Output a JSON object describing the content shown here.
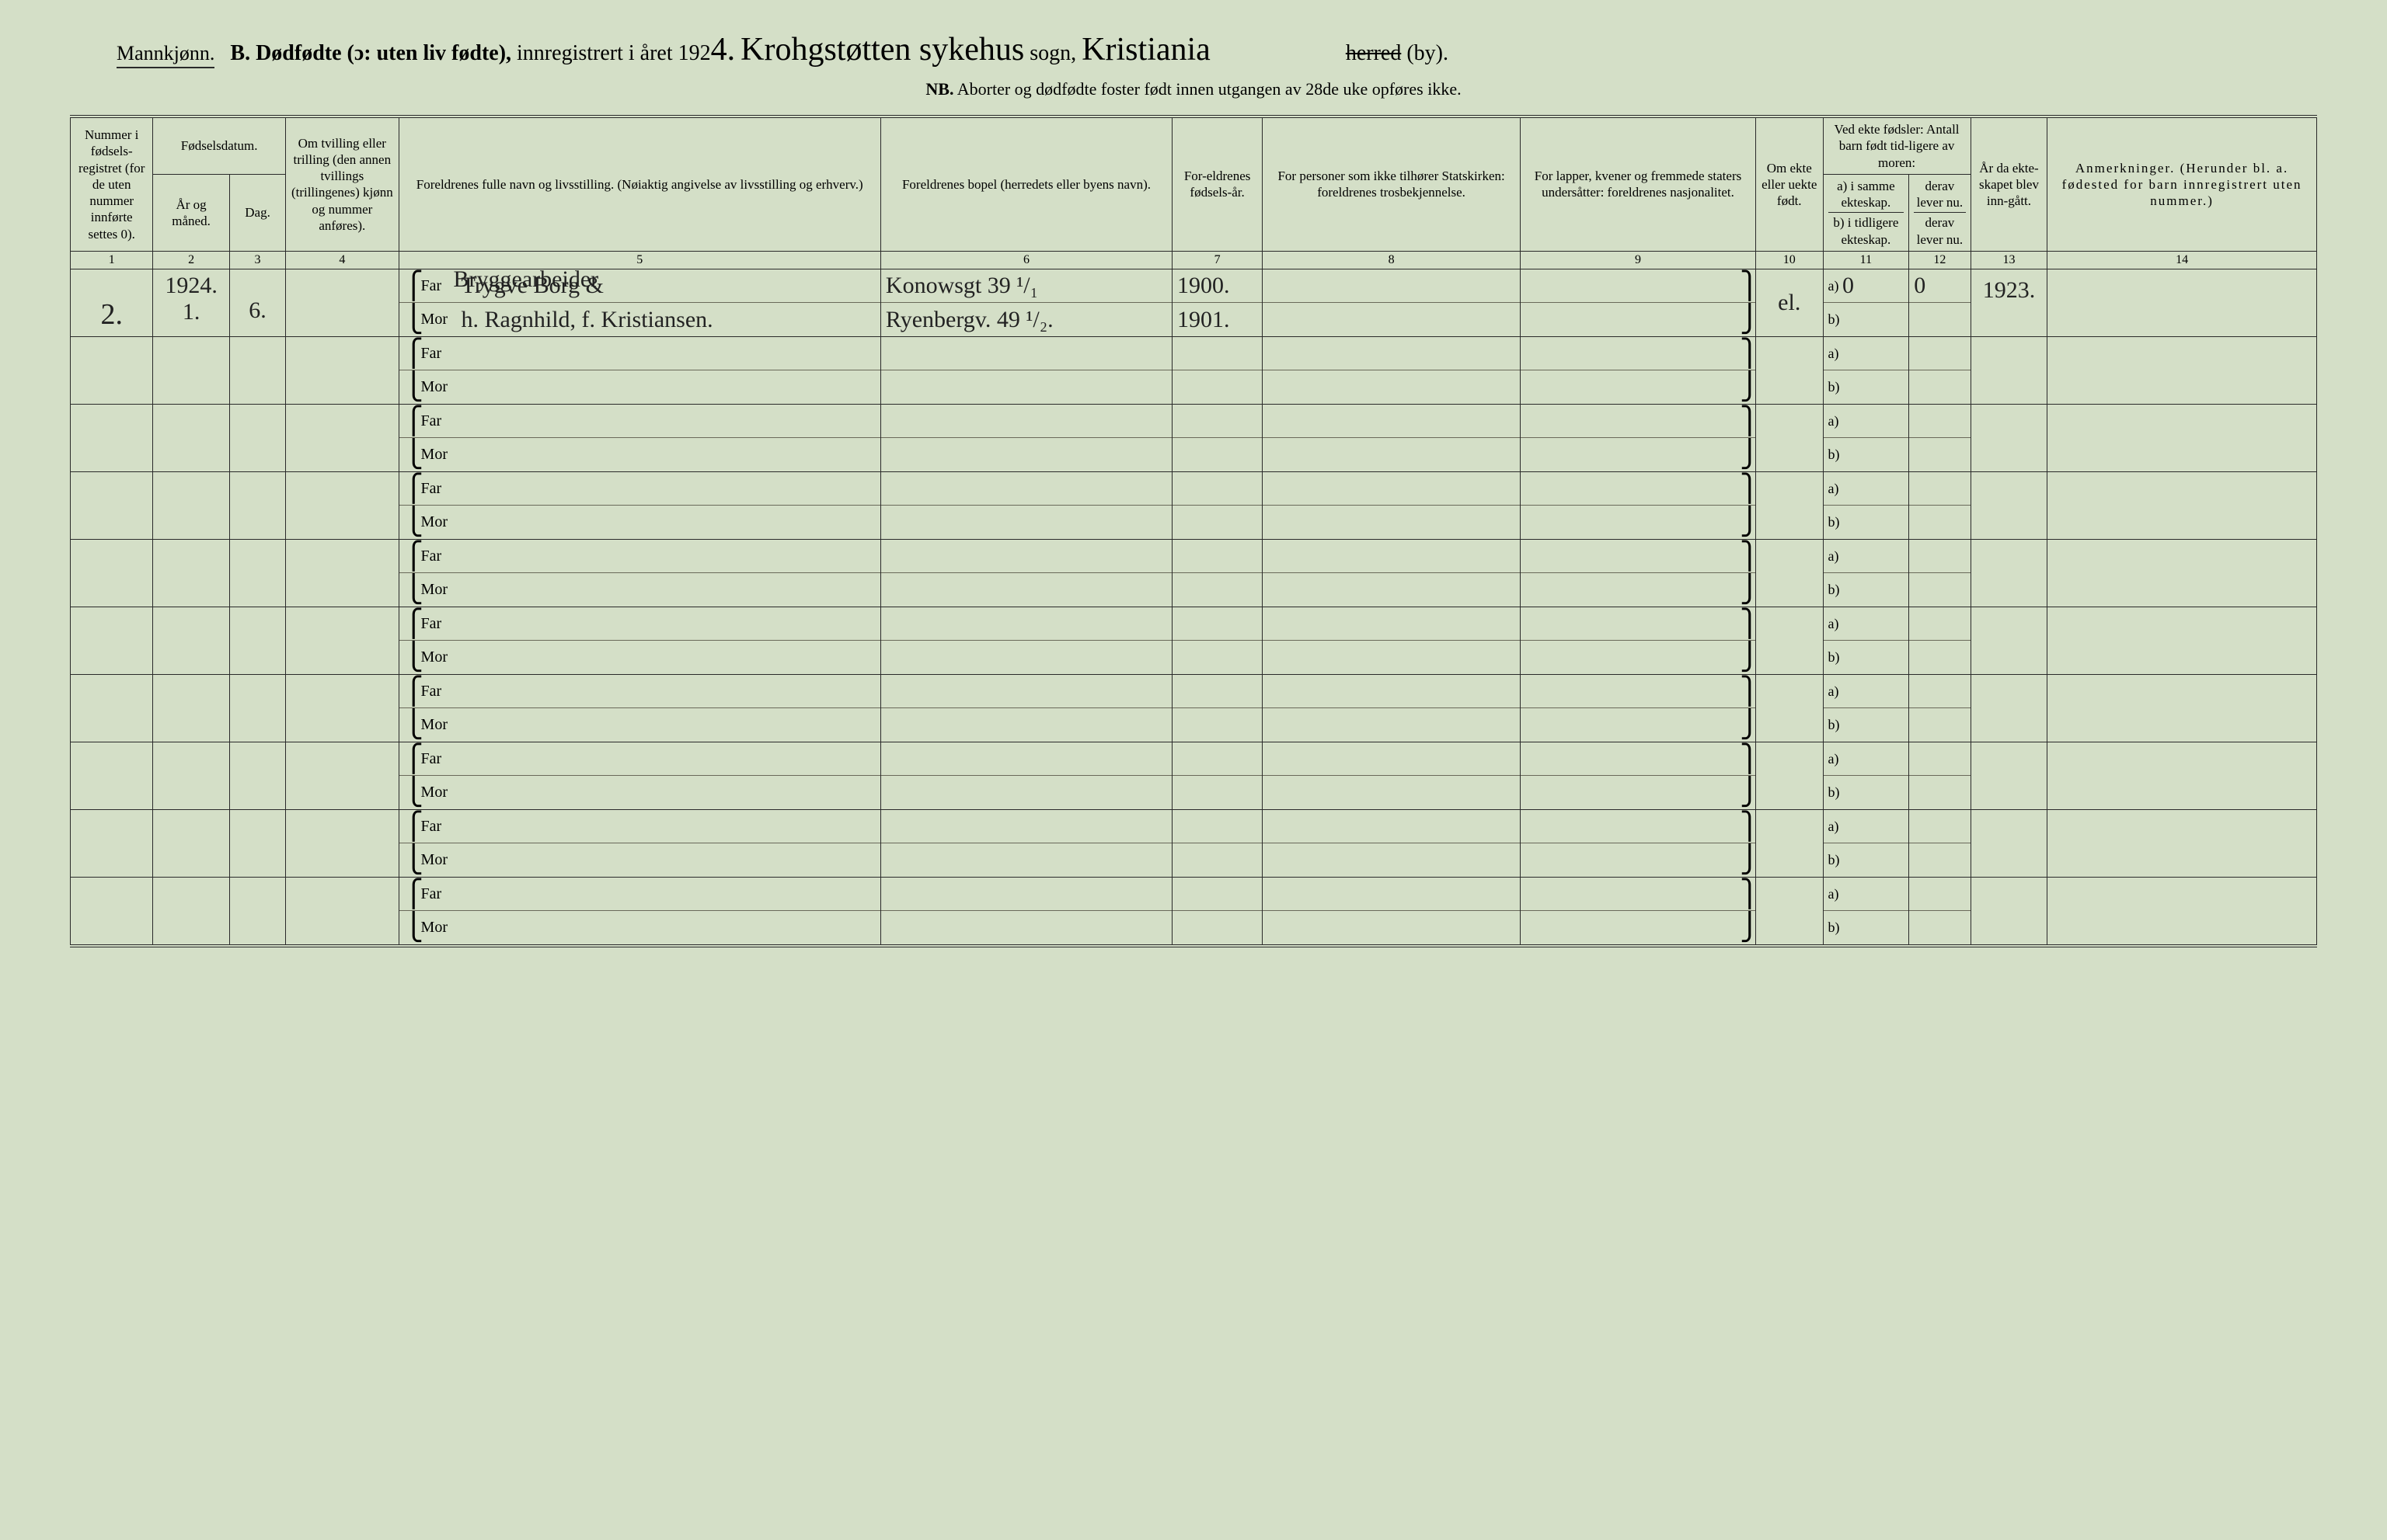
{
  "header": {
    "gender": "Mannkjønn.",
    "section": "B.",
    "title_main": "Dødfødte (ɔ: uten liv fødte),",
    "title_reg": "innregistrert i året 192",
    "year_suffix": "4.",
    "sogn_hand": "Krohgstøtten sykehus",
    "sogn_label": "sogn,",
    "city_hand": "Kristiania",
    "herred_strike": "herred",
    "by_suffix": "(by).",
    "nb_prefix": "NB.",
    "nb_text": "Aborter og dødfødte foster født innen utgangen av 28de uke opføres ikke."
  },
  "cols": {
    "c1": "Nummer i fødsels-registret (for de uten nummer innførte settes 0).",
    "c2a": "Fødselsdatum.",
    "c2": "År og måned.",
    "c3": "Dag.",
    "c4": "Om tvilling eller trilling (den annen tvillings (trillingenes) kjønn og nummer anføres).",
    "c5": "Foreldrenes fulle navn og livsstilling. (Nøiaktig angivelse av livsstilling og erhverv.)",
    "c6": "Foreldrenes bopel (herredets eller byens navn).",
    "c7": "For-eldrenes fødsels-år.",
    "c8": "For personer som ikke tilhører Statskirken: foreldrenes trosbekjennelse.",
    "c9": "For lapper, kvener og fremmede staters undersåtter: foreldrenes nasjonalitet.",
    "c10": "Om ekte eller uekte født.",
    "c11_top": "Ved ekte fødsler: Antall barn født tid-ligere av moren:",
    "c11a": "a) i samme ekteskap.",
    "c11b": "b) i tidligere ekteskap.",
    "c12a": "derav lever nu.",
    "c12b": "derav lever nu.",
    "c13": "År da ekte-skapet blev inn-gått.",
    "c14": "Anmerkninger. (Herunder bl. a. fødested for barn innregistrert uten nummer.)"
  },
  "nums": [
    "1",
    "2",
    "3",
    "4",
    "5",
    "6",
    "7",
    "8",
    "9",
    "10",
    "11",
    "12",
    "13",
    "14"
  ],
  "labels": {
    "far": "Far",
    "mor": "Mor",
    "a": "a)",
    "b": "b)"
  },
  "row1": {
    "num": "2.",
    "year": "1924.",
    "month": "1.",
    "day": "6.",
    "occupation": "Bryggearbeider",
    "far_name": "Trygve Borg &",
    "mor_name": "h. Ragnhild, f. Kristiansen.",
    "far_addr": "Konowsgt 39 ¹/₁",
    "mor_addr": "Ryenbergv. 49 ¹/₂.",
    "far_yr": "1900.",
    "mor_yr": "1901.",
    "ekte": "el.",
    "a_val": "0",
    "b_val": "",
    "a_lev": "0",
    "b_lev": "",
    "marr_yr": "1923."
  }
}
